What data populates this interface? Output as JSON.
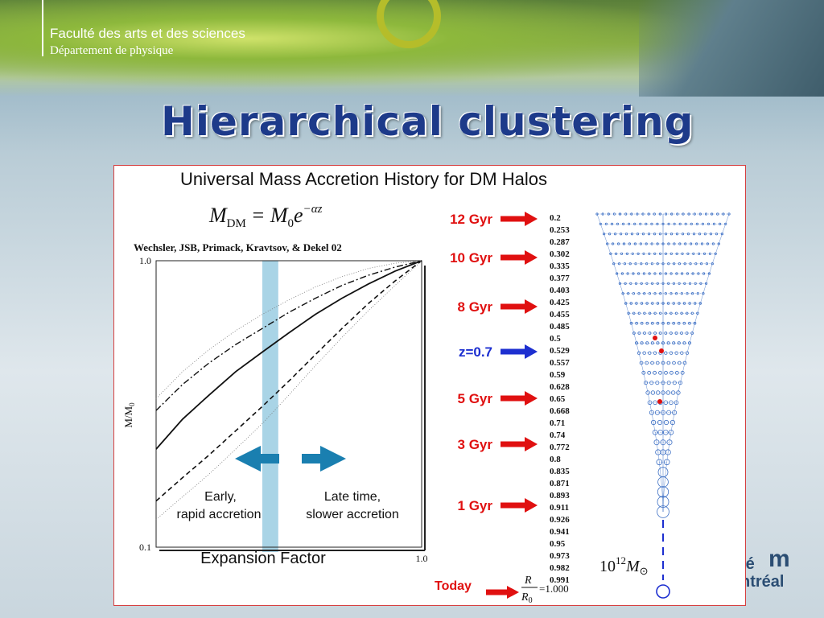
{
  "header": {
    "faculty": "Faculté des arts et des sciences",
    "department": "Département de physique"
  },
  "slide": {
    "title": "Hierarchical clustering"
  },
  "logo": {
    "text_line1": "té",
    "text_line2": "ntréal",
    "mark": "m"
  },
  "figure": {
    "title": "Universal Mass Accretion History for DM Halos",
    "equation_lhs": "M",
    "equation_lhs_sub": "DM",
    "equation_rhs": "= M",
    "equation_rhs_sub": "0",
    "equation_exp_base": "e",
    "equation_exp": "−αz",
    "citation": "Wechsler, JSB, Primack, Kravtsov, & Dekel 02",
    "early_label_1": "Early,",
    "early_label_2": "rapid accretion",
    "late_label_1": "Late time,",
    "late_label_2": "slower accretion",
    "time_labels": [
      {
        "text": "12 Gyr",
        "color": "#e01010"
      },
      {
        "text": "10 Gyr",
        "color": "#e01010"
      },
      {
        "text": "8 Gyr",
        "color": "#e01010"
      },
      {
        "text": "z=0.7",
        "color": "#1d2fd0"
      },
      {
        "text": "5 Gyr",
        "color": "#e01010"
      },
      {
        "text": "3 Gyr",
        "color": "#e01010"
      },
      {
        "text": "1 Gyr",
        "color": "#e01010"
      }
    ],
    "today_label": "Today",
    "ratio_label_num": "R",
    "ratio_label_den": "R",
    "ratio_label_den_sub": "0",
    "ratio_label_eq": "=1.000",
    "scale_factors": [
      "0.2",
      "0.253",
      "0.287",
      "0.302",
      "0.335",
      "0.377",
      "0.403",
      "0.425",
      "0.455",
      "0.485",
      "0.5",
      "0.529",
      "0.557",
      "0.59",
      "0.628",
      "0.65",
      "0.668",
      "0.71",
      "0.74",
      "0.772",
      "0.8",
      "0.835",
      "0.871",
      "0.893",
      "0.911",
      "0.926",
      "0.941",
      "0.95",
      "0.973",
      "0.982",
      "0.991"
    ],
    "mass_label": "10",
    "mass_label_exp": "12",
    "mass_label_sym": "M",
    "mass_label_sub": "⊙"
  },
  "chart_data": {
    "type": "line",
    "xlabel": "Expansion Factor",
    "ylabel": "M/M",
    "ylabel_sub": "0",
    "yscale": "log",
    "ylim": [
      0.1,
      1.0
    ],
    "xlim": [
      0.0,
      1.0
    ],
    "y_ticks": [
      "1.0",
      "0.1"
    ],
    "x_ticks": [
      "1.0"
    ],
    "shaded_band_x": [
      0.4,
      0.46
    ],
    "grid": false,
    "series": [
      {
        "style": "dash-dot",
        "x": [
          0.0,
          0.1,
          0.2,
          0.3,
          0.4,
          0.5,
          0.6,
          0.7,
          0.8,
          0.9,
          1.0
        ],
        "y": [
          0.3,
          0.37,
          0.44,
          0.51,
          0.58,
          0.66,
          0.74,
          0.82,
          0.89,
          0.95,
          1.0
        ]
      },
      {
        "style": "solid",
        "x": [
          0.0,
          0.1,
          0.2,
          0.3,
          0.4,
          0.5,
          0.6,
          0.7,
          0.8,
          0.9,
          1.0
        ],
        "y": [
          0.22,
          0.28,
          0.34,
          0.41,
          0.48,
          0.56,
          0.65,
          0.74,
          0.83,
          0.92,
          1.0
        ]
      },
      {
        "style": "dashed",
        "x": [
          0.0,
          0.1,
          0.2,
          0.3,
          0.4,
          0.5,
          0.6,
          0.7,
          0.8,
          0.9,
          1.0
        ],
        "y": [
          0.145,
          0.175,
          0.21,
          0.255,
          0.31,
          0.38,
          0.47,
          0.58,
          0.71,
          0.85,
          1.0
        ]
      },
      {
        "style": "dotted-upper",
        "x": [
          0.0,
          0.1,
          0.2,
          0.3,
          0.4,
          0.5,
          0.6,
          0.7,
          0.8,
          0.9,
          1.0
        ],
        "y": [
          0.33,
          0.41,
          0.49,
          0.57,
          0.65,
          0.73,
          0.81,
          0.88,
          0.94,
          0.98,
          1.0
        ]
      },
      {
        "style": "dotted-lower",
        "x": [
          0.0,
          0.1,
          0.2,
          0.3,
          0.4,
          0.5,
          0.6,
          0.7,
          0.8,
          0.9,
          1.0
        ],
        "y": [
          0.125,
          0.15,
          0.18,
          0.22,
          0.27,
          0.34,
          0.43,
          0.54,
          0.67,
          0.82,
          1.0
        ]
      }
    ]
  },
  "colors": {
    "title": "#1d3a8a",
    "arrow_red": "#e01010",
    "arrow_blue": "#1d2fd0",
    "band": "#a9d4e6",
    "teal_arrow": "#1a7fb0",
    "tree": "#3c6fc4"
  }
}
